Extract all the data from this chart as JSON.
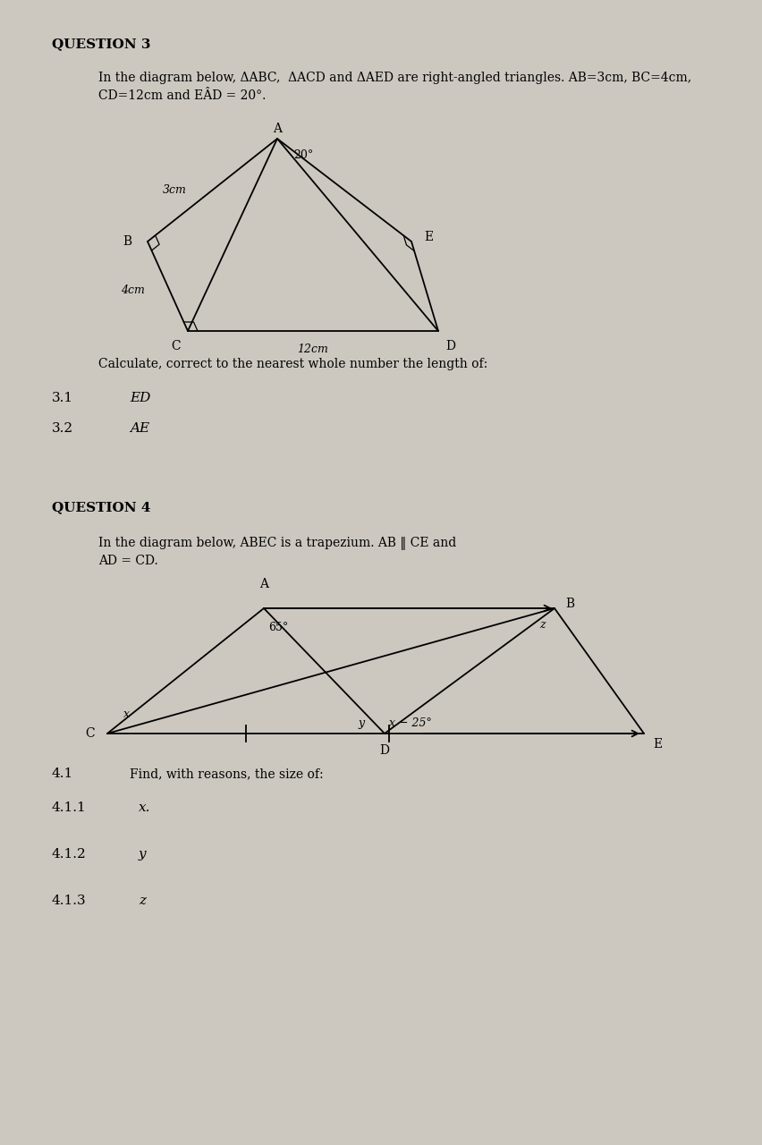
{
  "bg_color": "#ccc8bf",
  "page_bg": "#c8c3ba",
  "q3_title": "QUESTION 3",
  "q3_intro_line1": "In the diagram below, ΔABC,  ΔACD and ΔAED are right-angled triangles. AB=3cm, BC=4cm,",
  "q3_intro_line2": "CD=12cm and EÂD = 20°.",
  "q3_calc_text": "Calculate, correct to the nearest whole number the length of:",
  "q4_title": "QUESTION 4",
  "q4_intro_line1": "In the diagram below, ABEC is a trapezium. AB ‖ CE and",
  "q4_intro_line2": "AD = CD.",
  "lw": 1.3,
  "ra_size": 0.008
}
